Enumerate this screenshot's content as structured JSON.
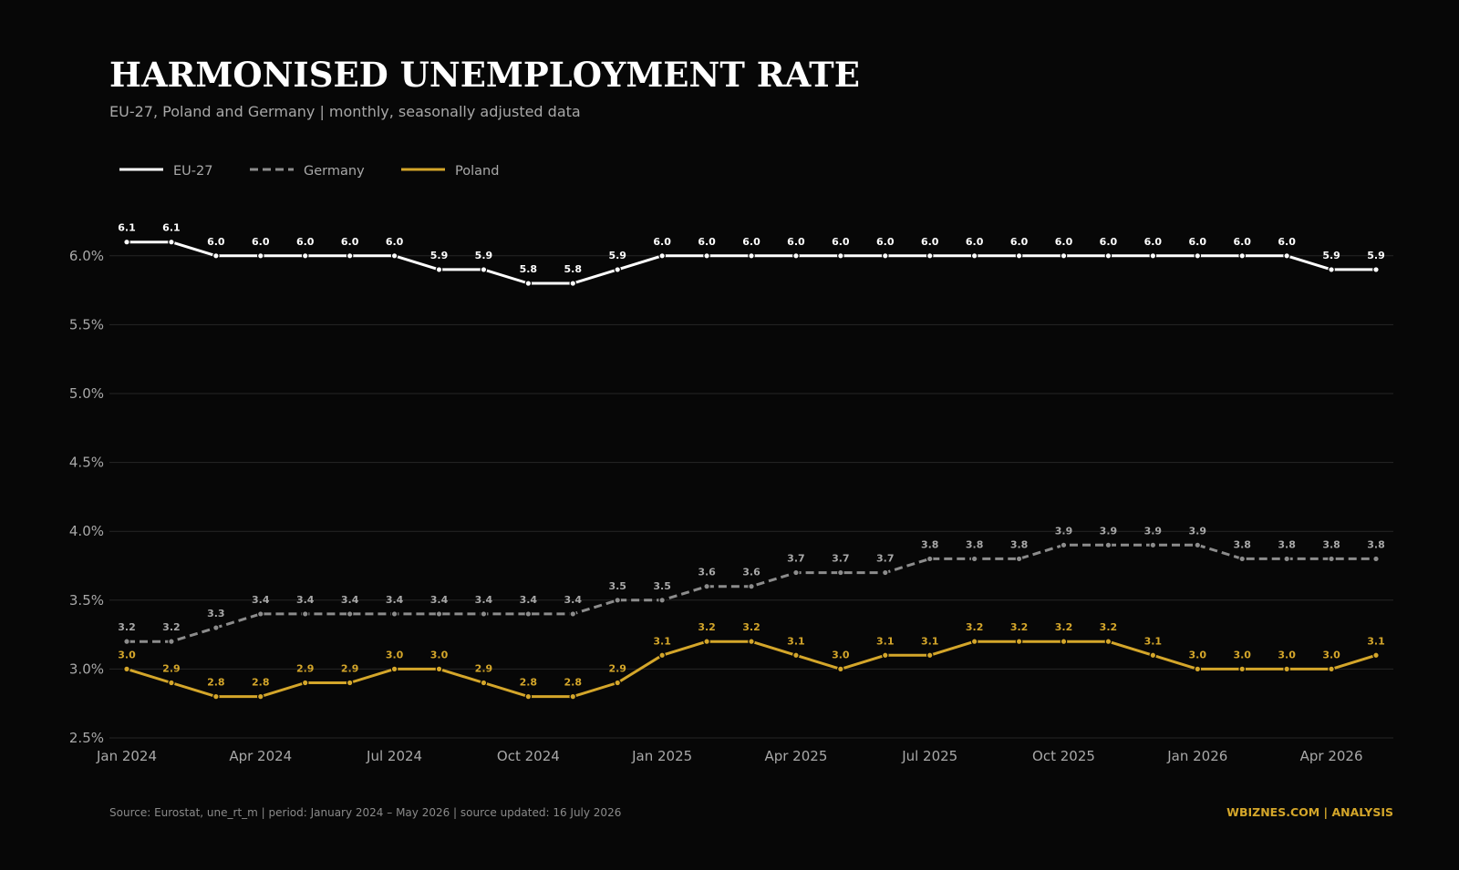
{
  "header": {
    "title": "HARMONISED UNEMPLOYMENT RATE",
    "subtitle": "EU-27, Poland and Germany | monthly, seasonally adjusted data"
  },
  "footer": {
    "source": "Source: Eurostat, une_rt_m | period: January 2024 – May 2026 | source updated: 16 July 2026",
    "brand": "WBIZNES.COM | ANALYSIS"
  },
  "chart_data": {
    "type": "line",
    "title": "HARMONISED UNEMPLOYMENT RATE",
    "subtitle": "EU-27, Poland and Germany | monthly, seasonally adjusted data",
    "xlabel": "",
    "ylabel": "",
    "x": [
      "2024-01",
      "2024-02",
      "2024-03",
      "2024-04",
      "2024-05",
      "2024-06",
      "2024-07",
      "2024-08",
      "2024-09",
      "2024-10",
      "2024-11",
      "2024-12",
      "2025-01",
      "2025-02",
      "2025-03",
      "2025-04",
      "2025-05",
      "2025-06",
      "2025-07",
      "2025-08",
      "2025-09",
      "2025-10",
      "2025-11",
      "2025-12",
      "2026-01",
      "2026-02",
      "2026-03",
      "2026-04",
      "2026-05"
    ],
    "x_ticks": [
      {
        "index": 0,
        "label": "Jan 2024"
      },
      {
        "index": 3,
        "label": "Apr 2024"
      },
      {
        "index": 6,
        "label": "Jul 2024"
      },
      {
        "index": 9,
        "label": "Oct 2024"
      },
      {
        "index": 12,
        "label": "Jan 2025"
      },
      {
        "index": 15,
        "label": "Apr 2025"
      },
      {
        "index": 18,
        "label": "Jul 2025"
      },
      {
        "index": 21,
        "label": "Oct 2025"
      },
      {
        "index": 24,
        "label": "Jan 2026"
      },
      {
        "index": 27,
        "label": "Apr 2026"
      }
    ],
    "y_ticks": [
      2.5,
      3.0,
      3.5,
      4.0,
      4.5,
      5.0,
      5.5,
      6.0
    ],
    "y_tick_labels": [
      "2.5%",
      "3.0%",
      "3.5%",
      "4.0%",
      "4.5%",
      "5.0%",
      "5.5%",
      "6.0%"
    ],
    "ylim": [
      2.5,
      6.25
    ],
    "grid": "horizontal",
    "legend": "top-left",
    "series": [
      {
        "name": "EU-27",
        "color": "#ffffff",
        "dash": "solid",
        "values": [
          6.1,
          6.1,
          6.0,
          6.0,
          6.0,
          6.0,
          6.0,
          5.9,
          5.9,
          5.8,
          5.8,
          5.9,
          6.0,
          6.0,
          6.0,
          6.0,
          6.0,
          6.0,
          6.0,
          6.0,
          6.0,
          6.0,
          6.0,
          6.0,
          6.0,
          6.0,
          6.0,
          5.9,
          5.9
        ]
      },
      {
        "name": "Germany",
        "color": "#8c8c8c",
        "dash": "dashed",
        "values": [
          3.2,
          3.2,
          3.3,
          3.4,
          3.4,
          3.4,
          3.4,
          3.4,
          3.4,
          3.4,
          3.4,
          3.5,
          3.5,
          3.6,
          3.6,
          3.7,
          3.7,
          3.7,
          3.8,
          3.8,
          3.8,
          3.9,
          3.9,
          3.9,
          3.9,
          3.8,
          3.8,
          3.8,
          3.8
        ]
      },
      {
        "name": "Poland",
        "color": "#d4a62a",
        "dash": "solid",
        "values": [
          3.0,
          2.9,
          2.8,
          2.8,
          2.9,
          2.9,
          3.0,
          3.0,
          2.9,
          2.8,
          2.8,
          2.9,
          3.1,
          3.2,
          3.2,
          3.1,
          3.0,
          3.1,
          3.1,
          3.2,
          3.2,
          3.2,
          3.2,
          3.1,
          3.0,
          3.0,
          3.0,
          3.0,
          3.1
        ]
      }
    ]
  }
}
